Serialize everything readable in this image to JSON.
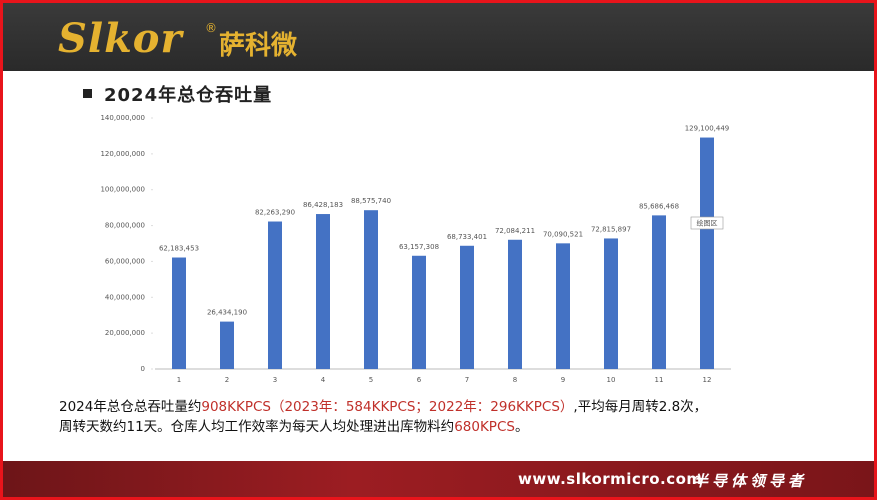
{
  "header": {
    "logo": "Slkor",
    "logo_mark": "®",
    "brand": "萨科微"
  },
  "slide_title": "2024年总仓吞吐量",
  "chart_data": {
    "type": "bar",
    "categories": [
      "1",
      "2",
      "3",
      "4",
      "5",
      "6",
      "7",
      "8",
      "9",
      "10",
      "11",
      "12"
    ],
    "values": [
      62183453,
      26434190,
      82263290,
      86428183,
      88575740,
      63157308,
      68733401,
      72084211,
      70090521,
      72815897,
      85686468,
      129100449
    ],
    "value_labels": [
      "62,183,453",
      "26,434,190",
      "82,263,290",
      "86,428,183",
      "88,575,740",
      "63,157,308",
      "68,733,401",
      "72,084,211",
      "70,090,521",
      "72,815,897",
      "85,686,468",
      "129,100,449"
    ],
    "color": "#4472c4",
    "ylim": [
      0,
      140000000
    ],
    "yticks": [
      {
        "value": 0,
        "label": "0"
      },
      {
        "value": 20000000,
        "label": "20,000,000"
      },
      {
        "value": 40000000,
        "label": "40,000,000"
      },
      {
        "value": 60000000,
        "label": "60,000,000"
      },
      {
        "value": 80000000,
        "label": "80,000,000"
      },
      {
        "value": 100000000,
        "label": "100,000,000"
      },
      {
        "value": 120000000,
        "label": "120,000,000"
      },
      {
        "value": 140000000,
        "label": "140,000,000"
      }
    ],
    "annotation": "绘图区"
  },
  "paragraph": [
    [
      {
        "text": "2024年总仓总吞吐量约",
        "color": "#111111"
      },
      {
        "text": "908KKPCS（2023年：584KKPCS；2022年：296KKPCS）",
        "color": "#c0302a"
      },
      {
        "text": ",平均每月周转2.8次，",
        "color": "#111111"
      }
    ],
    [
      {
        "text": "周转天数约11天。仓库人均工作效率为每天人均处理进出库物料约",
        "color": "#111111"
      },
      {
        "text": "680KPCS",
        "color": "#c0302a"
      },
      {
        "text": "。",
        "color": "#111111"
      }
    ]
  ],
  "footer": {
    "url": "www.slkormicro.com",
    "slogan": "半导体领导者"
  }
}
